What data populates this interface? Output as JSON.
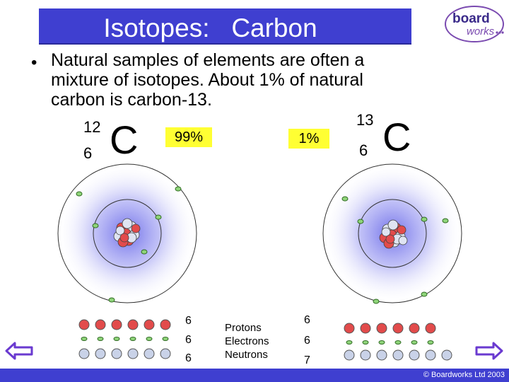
{
  "title": "Isotopes:   Carbon",
  "logo": {
    "line1": "board",
    "line2": "works"
  },
  "bullet": "Natural samples of elements are often a mixture of isotopes.  About 1% of natural carbon is carbon-13.",
  "isotopes": {
    "c12": {
      "mass_number": "12",
      "atomic_number": "6",
      "symbol": "C",
      "abundance": "99%"
    },
    "c13": {
      "mass_number": "13",
      "atomic_number": "6",
      "symbol": "C",
      "abundance": "1%"
    }
  },
  "particle_counts": {
    "c12": {
      "protons": "6",
      "electrons": "6",
      "neutrons": "6"
    },
    "c13": {
      "protons": "6",
      "electrons": "6",
      "neutrons": "7"
    }
  },
  "legend": {
    "protons": "Protons",
    "electrons": "Electrons",
    "neutrons": "Neutrons"
  },
  "nav": {
    "back_icon": "left-arrow-icon",
    "forward_icon": "right-arrow-icon"
  },
  "copyright": "© Boardworks Ltd 2003",
  "colors": {
    "title_bar": "#3f3fd0",
    "highlight": "#ffff33",
    "proton": "#e24b4b",
    "neutron": "#c9d2e8",
    "electron": "#4a9a3a",
    "nav_arrow": "#6a3ad0"
  }
}
